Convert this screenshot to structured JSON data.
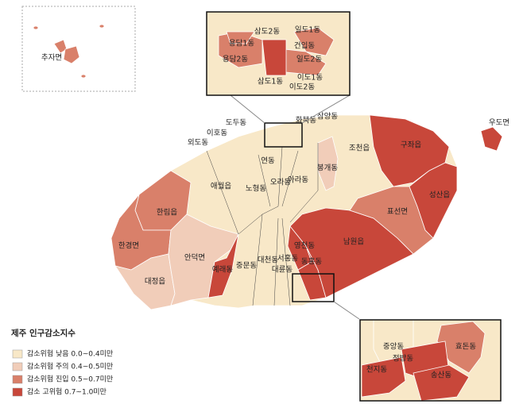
{
  "legend": {
    "title": "제주 인구감소지수",
    "items": [
      {
        "label": "감소위험 낮음 0.0~0.4미만",
        "color": "#f8e8c8"
      },
      {
        "label": "감소위험 주의 0.4~0.5미만",
        "color": "#f1cdb9"
      },
      {
        "label": "감소위험 진입 0.5~0.7미만",
        "color": "#d9806a"
      },
      {
        "label": "감소 고위험 0.7~1.0미만",
        "color": "#c8473a"
      }
    ]
  },
  "regions": [
    {
      "name": "애월읍",
      "color": "#f8e8c8"
    },
    {
      "name": "한림읍",
      "color": "#d9806a"
    },
    {
      "name": "한경면",
      "color": "#d9806a"
    },
    {
      "name": "대정읍",
      "color": "#f1cdb9"
    },
    {
      "name": "안덕면",
      "color": "#f1cdb9"
    },
    {
      "name": "예래동",
      "color": "#c8473a"
    },
    {
      "name": "중문동",
      "color": "#f8e8c8"
    },
    {
      "name": "대천동",
      "color": "#f8e8c8"
    },
    {
      "name": "서홍동",
      "color": "#f8e8c8"
    },
    {
      "name": "대륜동",
      "color": "#f8e8c8"
    },
    {
      "name": "영천동",
      "color": "#c8473a"
    },
    {
      "name": "동홍동",
      "color": "#c8473a"
    },
    {
      "name": "남원읍",
      "color": "#c8473a"
    },
    {
      "name": "표선면",
      "color": "#d9806a"
    },
    {
      "name": "성산읍",
      "color": "#c8473a"
    },
    {
      "name": "구좌읍",
      "color": "#c8473a"
    },
    {
      "name": "조천읍",
      "color": "#f8e8c8"
    },
    {
      "name": "봉개동",
      "color": "#f1cdb9"
    },
    {
      "name": "아라동",
      "color": "#f8e8c8"
    },
    {
      "name": "오라동",
      "color": "#f8e8c8"
    },
    {
      "name": "노형동",
      "color": "#f8e8c8"
    },
    {
      "name": "연동",
      "color": "#f8e8c8"
    },
    {
      "name": "외도동",
      "color": "#f8e8c8"
    },
    {
      "name": "이호동",
      "color": "#f8e8c8"
    },
    {
      "name": "도두동",
      "color": "#f8e8c8"
    },
    {
      "name": "화북동",
      "color": "#f8e8c8"
    },
    {
      "name": "삼양동",
      "color": "#f8e8c8"
    },
    {
      "name": "우도면",
      "color": "#c8473a"
    },
    {
      "name": "추자면",
      "color": "#d9806a"
    }
  ],
  "inset_north": {
    "regions": [
      {
        "name": "삼도2동",
        "color": "#c8473a"
      },
      {
        "name": "일도1동",
        "color": "#f8e8c8"
      },
      {
        "name": "용담1동",
        "color": "#d9806a"
      },
      {
        "name": "건입동",
        "color": "#d9806a"
      },
      {
        "name": "일도2동",
        "color": "#d9806a"
      },
      {
        "name": "용담2동",
        "color": "#d9806a"
      },
      {
        "name": "삼도1동",
        "color": "#c8473a"
      },
      {
        "name": "이도1동",
        "color": "#f8e8c8"
      },
      {
        "name": "이도2동",
        "color": "#f8e8c8"
      }
    ]
  },
  "inset_south": {
    "regions": [
      {
        "name": "중앙동",
        "color": "#f8e8c8"
      },
      {
        "name": "효돈동",
        "color": "#d9806a"
      },
      {
        "name": "정방동",
        "color": "#c8473a"
      },
      {
        "name": "천지동",
        "color": "#c8473a"
      },
      {
        "name": "송산동",
        "color": "#c8473a"
      }
    ]
  }
}
